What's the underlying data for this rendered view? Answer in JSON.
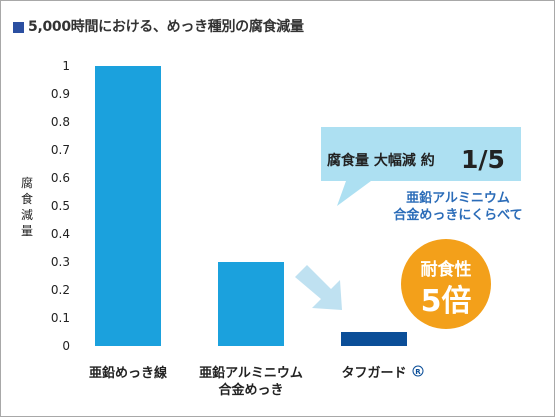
{
  "title": "5,000時間における、めっき種別の腐食減量",
  "colors": {
    "title_marker": "#2b4fa1",
    "bar_light": "#1ba1dd",
    "bar_dark": "#0b4e98",
    "arrow": "#bfe1f1",
    "callout_light": "#ade0f2",
    "callout_accent": "#2b6cb8",
    "badge": "#f3a01a"
  },
  "chart_data": {
    "type": "bar",
    "title": "5,000時間における、めっき種別の腐食減量",
    "ylabel": "腐食減量",
    "ylim": [
      0,
      1
    ],
    "yticks": [
      "0",
      "0.1",
      "0.2",
      "0.3",
      "0.4",
      "0.5",
      "0.6",
      "0.7",
      "0.8",
      "0.9",
      "1"
    ],
    "grid": false,
    "categories": [
      [
        "亜鉛めっき線"
      ],
      [
        "亜鉛アルミニウム",
        "合金めっき"
      ],
      [
        "タフガード"
      ]
    ],
    "values": [
      1.0,
      0.3,
      0.05
    ],
    "registered_mark": "R"
  },
  "callout": {
    "text": "腐食量 大幅減 約",
    "emphasis": "1/5",
    "note": [
      "亜鉛アルミニウム",
      "合金めっきにくらべて"
    ]
  },
  "badge": {
    "line1": "耐食性",
    "line2": "5倍"
  }
}
